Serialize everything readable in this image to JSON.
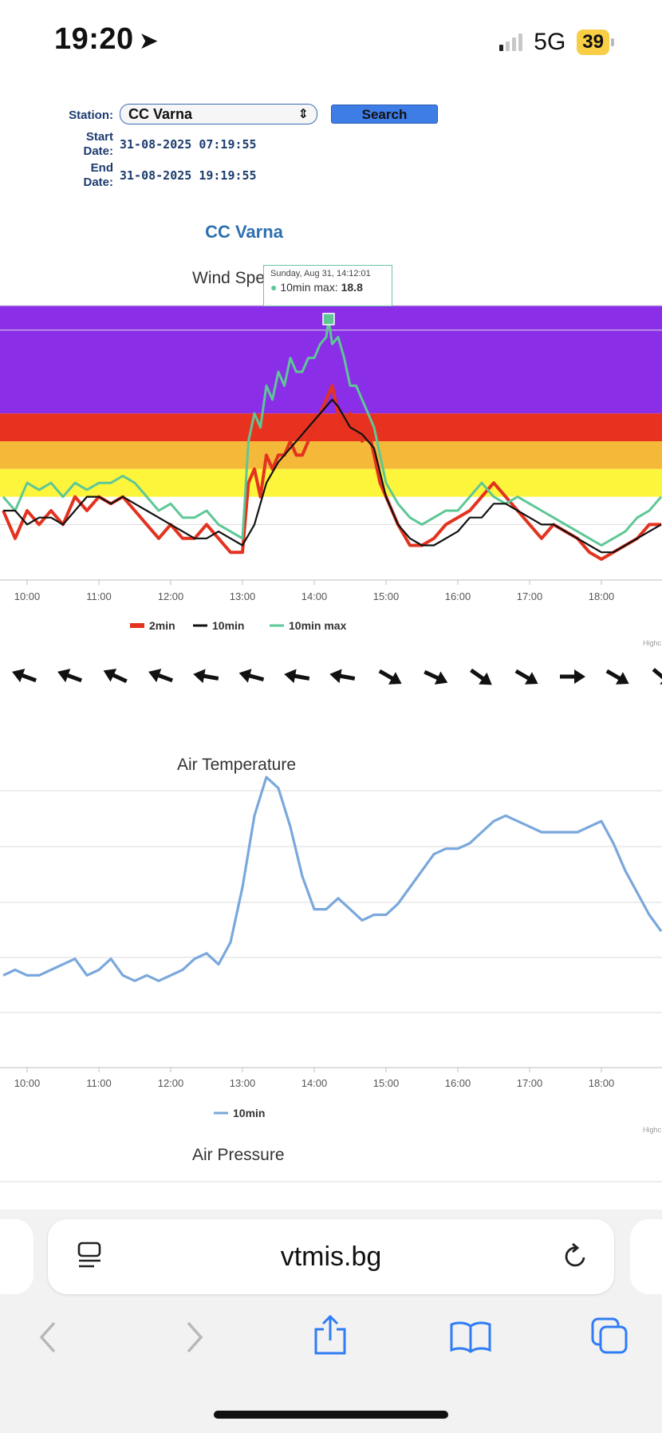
{
  "status_bar": {
    "time": "19:20",
    "network": "5G",
    "battery": "39"
  },
  "form": {
    "station_label": "Station:",
    "station_value": "CC Varna",
    "search_label": "Search",
    "start_label_1": "Start",
    "start_label_2": "Date:",
    "start_value": "31-08-2025 07:19:55",
    "end_label_1": "End",
    "end_label_2": "Date:",
    "end_value": "31-08-2025 19:19:55"
  },
  "station_title": "CC Varna",
  "tooltip": {
    "date": "Sunday, Aug 31, 14:12:01",
    "series": "10min max:",
    "value": "18.8"
  },
  "credits": "Highc",
  "browser": {
    "url": "vtmis.bg"
  },
  "chart_data": [
    {
      "type": "line",
      "title": "Wind Spe",
      "x_tick_labels": [
        "10:00",
        "11:00",
        "12:00",
        "13:00",
        "14:00",
        "15:00",
        "16:00",
        "17:00",
        "18:00",
        "1"
      ],
      "bands_colors": [
        "#8a2ee8",
        "#e8321f",
        "#f5b93a",
        "#fdf53c"
      ],
      "series": [
        {
          "name": "2min",
          "color": "#e3321f",
          "x": [
            "09:40",
            "09:50",
            "10:00",
            "10:10",
            "10:20",
            "10:30",
            "10:40",
            "10:50",
            "11:00",
            "11:10",
            "11:20",
            "11:30",
            "11:40",
            "11:50",
            "12:00",
            "12:10",
            "12:20",
            "12:30",
            "12:40",
            "12:50",
            "13:00",
            "13:05",
            "13:10",
            "13:15",
            "13:20",
            "13:25",
            "13:30",
            "13:35",
            "13:40",
            "13:45",
            "13:50",
            "13:55",
            "14:00",
            "14:05",
            "14:10",
            "14:15",
            "14:20",
            "14:25",
            "14:30",
            "14:35",
            "14:40",
            "14:45",
            "14:50",
            "14:55",
            "15:00",
            "15:10",
            "15:20",
            "15:30",
            "15:40",
            "15:50",
            "16:00",
            "16:10",
            "16:20",
            "16:30",
            "16:40",
            "16:50",
            "17:00",
            "17:10",
            "17:20",
            "17:30",
            "17:40",
            "17:50",
            "18:00",
            "18:10",
            "18:20",
            "18:30",
            "18:40",
            "18:50"
          ],
          "values": [
            5,
            3,
            5,
            4,
            5,
            4,
            6,
            5,
            6,
            5.5,
            6,
            5,
            4,
            3,
            4,
            3,
            3,
            4,
            3,
            2,
            2,
            7,
            8,
            6,
            9,
            8,
            9,
            9,
            10,
            9,
            9,
            10,
            11,
            12,
            13,
            14,
            12,
            11,
            12,
            11,
            10,
            11,
            9,
            7,
            6,
            4,
            2.5,
            2.5,
            3,
            4,
            4.5,
            5,
            6,
            7,
            6,
            5,
            4,
            3,
            4,
            3.5,
            3,
            2,
            1.5,
            2,
            2.5,
            3,
            4,
            4
          ]
        },
        {
          "name": "10min",
          "color": "#111111",
          "x": [
            "09:40",
            "09:50",
            "10:00",
            "10:10",
            "10:20",
            "10:30",
            "10:40",
            "10:50",
            "11:00",
            "11:10",
            "11:20",
            "11:30",
            "11:40",
            "11:50",
            "12:00",
            "12:10",
            "12:20",
            "12:30",
            "12:40",
            "12:50",
            "13:00",
            "13:10",
            "13:20",
            "13:30",
            "13:40",
            "13:50",
            "14:00",
            "14:10",
            "14:15",
            "14:20",
            "14:30",
            "14:40",
            "14:50",
            "15:00",
            "15:10",
            "15:20",
            "15:30",
            "15:40",
            "15:50",
            "16:00",
            "16:10",
            "16:20",
            "16:30",
            "16:40",
            "16:50",
            "17:00",
            "17:10",
            "17:20",
            "17:30",
            "17:40",
            "17:50",
            "18:00",
            "18:10",
            "18:20",
            "18:30",
            "18:40",
            "18:50"
          ],
          "values": [
            5,
            5,
            4,
            4.5,
            4.5,
            4,
            5,
            6,
            6,
            5.5,
            6,
            5.5,
            5,
            4.5,
            4,
            3.5,
            3,
            3,
            3.5,
            3,
            2.5,
            4,
            7,
            8.5,
            9.5,
            10.5,
            11.5,
            12.5,
            13,
            12.5,
            11,
            10.5,
            9.5,
            6,
            4,
            3,
            2.5,
            2.5,
            3,
            3.5,
            4.5,
            4.5,
            5.5,
            5.5,
            5,
            4.5,
            4,
            4,
            3.5,
            3,
            2.5,
            2,
            2,
            2.5,
            3,
            3.5,
            4
          ]
        },
        {
          "name": "10min max",
          "color": "#5ec796",
          "x": [
            "09:40",
            "09:50",
            "10:00",
            "10:10",
            "10:20",
            "10:30",
            "10:40",
            "10:50",
            "11:00",
            "11:10",
            "11:20",
            "11:30",
            "11:40",
            "11:50",
            "12:00",
            "12:10",
            "12:20",
            "12:30",
            "12:40",
            "12:50",
            "13:00",
            "13:05",
            "13:10",
            "13:15",
            "13:20",
            "13:25",
            "13:30",
            "13:35",
            "13:40",
            "13:45",
            "13:50",
            "13:55",
            "14:00",
            "14:05",
            "14:10",
            "14:12",
            "14:15",
            "14:20",
            "14:25",
            "14:30",
            "14:35",
            "14:40",
            "14:45",
            "14:50",
            "14:55",
            "15:00",
            "15:10",
            "15:20",
            "15:30",
            "15:40",
            "15:50",
            "16:00",
            "16:10",
            "16:20",
            "16:30",
            "16:40",
            "16:50",
            "17:00",
            "17:10",
            "17:20",
            "17:30",
            "17:40",
            "17:50",
            "18:00",
            "18:10",
            "18:20",
            "18:30",
            "18:40",
            "18:50"
          ],
          "values": [
            6,
            5,
            7,
            6.5,
            7,
            6,
            7,
            6.5,
            7,
            7,
            7.5,
            7,
            6,
            5,
            5.5,
            4.5,
            4.5,
            5,
            4,
            3.5,
            3,
            10,
            12,
            11,
            14,
            13,
            15,
            14,
            16,
            15,
            15,
            16,
            16,
            17,
            17.5,
            18.8,
            17,
            17.5,
            16,
            14,
            14,
            13,
            12,
            11,
            9,
            7,
            5.5,
            4.5,
            4,
            4.5,
            5,
            5,
            6,
            7,
            6,
            5.5,
            6,
            5.5,
            5,
            4.5,
            4,
            3.5,
            3,
            2.5,
            3,
            3.5,
            4.5,
            5,
            6
          ]
        }
      ],
      "legend": "bottom-center"
    },
    {
      "type": "line",
      "title": "Air Temperature",
      "x_tick_labels": [
        "10:00",
        "11:00",
        "12:00",
        "13:00",
        "14:00",
        "15:00",
        "16:00",
        "17:00",
        "18:00",
        "1"
      ],
      "series": [
        {
          "name": "10min",
          "color": "#7aa8dc",
          "x": [
            "09:40",
            "09:50",
            "10:00",
            "10:10",
            "10:20",
            "10:30",
            "10:40",
            "10:50",
            "11:00",
            "11:10",
            "11:20",
            "11:30",
            "11:40",
            "11:50",
            "12:00",
            "12:10",
            "12:20",
            "12:30",
            "12:40",
            "12:50",
            "13:00",
            "13:10",
            "13:20",
            "13:30",
            "13:40",
            "13:50",
            "14:00",
            "14:10",
            "14:20",
            "14:30",
            "14:40",
            "14:50",
            "15:00",
            "15:10",
            "15:20",
            "15:30",
            "15:40",
            "15:50",
            "16:00",
            "16:10",
            "16:20",
            "16:30",
            "16:40",
            "16:50",
            "17:00",
            "17:10",
            "17:20",
            "17:30",
            "17:40",
            "17:50",
            "18:00",
            "18:10",
            "18:20",
            "18:30",
            "18:40",
            "18:50"
          ],
          "values": [
            0.4,
            0.5,
            0.4,
            0.4,
            0.5,
            0.6,
            0.7,
            0.4,
            0.5,
            0.7,
            0.4,
            0.3,
            0.4,
            0.3,
            0.4,
            0.5,
            0.7,
            0.8,
            0.6,
            1.0,
            2.0,
            3.3,
            4.0,
            3.8,
            3.1,
            2.2,
            1.6,
            1.6,
            1.8,
            1.6,
            1.4,
            1.5,
            1.5,
            1.7,
            2.0,
            2.3,
            2.6,
            2.7,
            2.7,
            2.8,
            3.0,
            3.2,
            3.3,
            3.2,
            3.1,
            3.0,
            3.0,
            3.0,
            3.0,
            3.1,
            3.2,
            2.8,
            2.3,
            1.9,
            1.5,
            1.2
          ]
        }
      ],
      "legend": "bottom-center"
    },
    {
      "type": "line",
      "title": "Air Pressure",
      "series": []
    }
  ]
}
